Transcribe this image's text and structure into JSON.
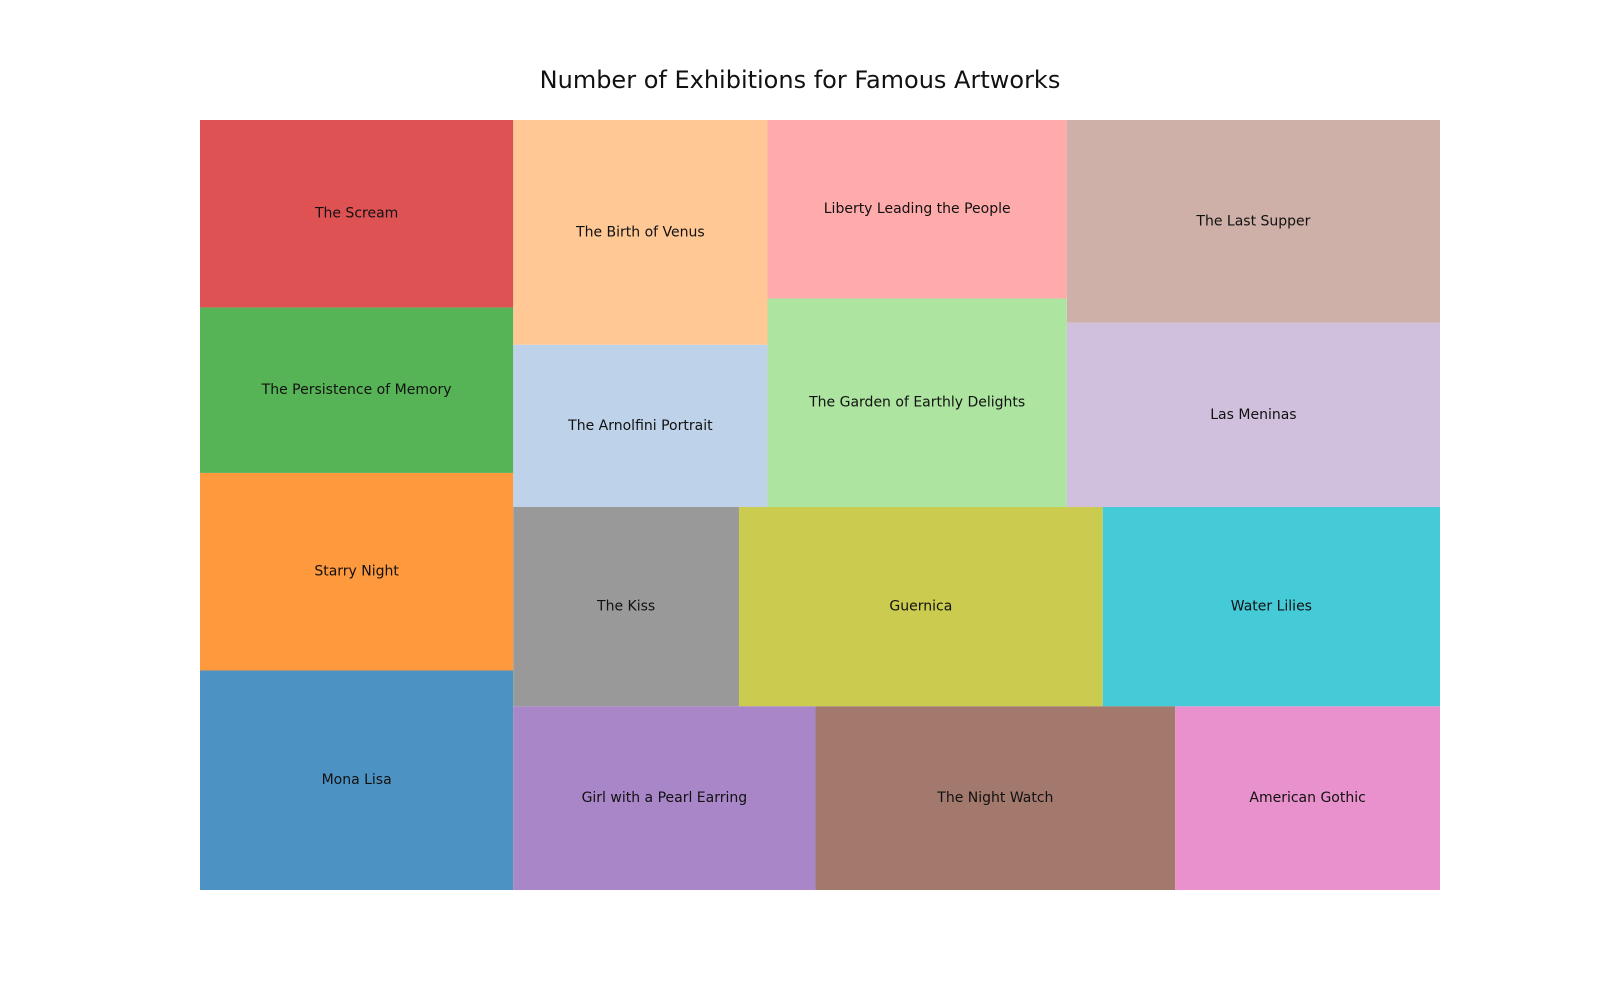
{
  "chart_data": {
    "type": "treemap",
    "title": "Number of Exhibitions for Famous Artworks",
    "grid": false,
    "items": [
      {
        "label": "Mona Lisa",
        "value": 130,
        "color": "#4c92c3"
      },
      {
        "label": "Starry Night",
        "value": 117,
        "color": "#ff993e"
      },
      {
        "label": "The Persistence of Memory",
        "value": 98,
        "color": "#56b356"
      },
      {
        "label": "The Scream",
        "value": 111,
        "color": "#df5254"
      },
      {
        "label": "The Arnolfini Portrait",
        "value": 78,
        "color": "#bed2e9"
      },
      {
        "label": "The Birth of Venus",
        "value": 108,
        "color": "#ffc895"
      },
      {
        "label": "The Garden of Earthly Delights",
        "value": 118,
        "color": "#ade5a0"
      },
      {
        "label": "Liberty Leading the People",
        "value": 101,
        "color": "#ffaaab"
      },
      {
        "label": "Las Meninas",
        "value": 130,
        "color": "#d0c0dd"
      },
      {
        "label": "The Last Supper",
        "value": 143,
        "color": "#ceb0a8"
      },
      {
        "label": "Girl with a Pearl Earring",
        "value": 105,
        "color": "#a886c8"
      },
      {
        "label": "The Night Watch",
        "value": 125,
        "color": "#a3796d"
      },
      {
        "label": "American Gothic",
        "value": 92,
        "color": "#e891cc"
      },
      {
        "label": "The Kiss",
        "value": 85,
        "color": "#999999"
      },
      {
        "label": "Guernica",
        "value": 137,
        "color": "#cbcb4f"
      },
      {
        "label": "Water Lilies",
        "value": 127,
        "color": "#45cad7"
      }
    ]
  }
}
